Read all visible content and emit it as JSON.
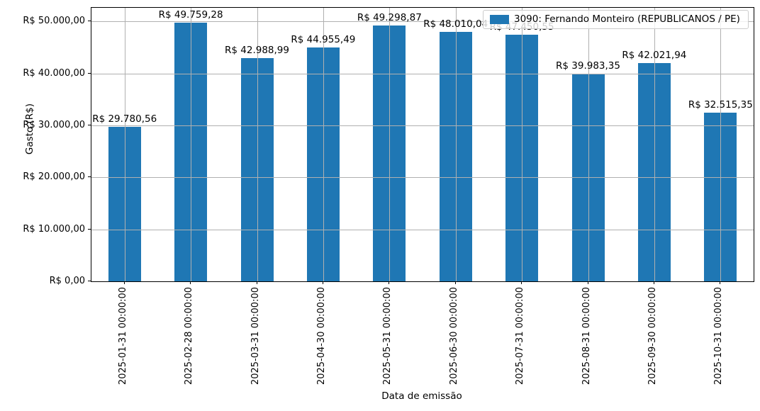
{
  "chart_data": {
    "type": "bar",
    "title": "",
    "xlabel": "Data de emissão",
    "ylabel": "Gasto (R$)",
    "categories": [
      "2025-01-31 00:00:00",
      "2025-02-28 00:00:00",
      "2025-03-31 00:00:00",
      "2025-04-30 00:00:00",
      "2025-05-31 00:00:00",
      "2025-06-30 00:00:00",
      "2025-07-31 00:00:00",
      "2025-08-31 00:00:00",
      "2025-09-30 00:00:00",
      "2025-10-31 00:00:00"
    ],
    "values": [
      29780.56,
      49759.28,
      42988.99,
      44955.49,
      49298.87,
      48010.04,
      47450.55,
      39983.35,
      42021.94,
      32515.35
    ],
    "bar_labels": [
      "R$ 29.780,56",
      "R$ 49.759,28",
      "R$ 42.988,99",
      "R$ 44.955,49",
      "R$ 49.298,87",
      "R$ 48.010,04",
      "R$ 47.450,55",
      "R$ 39.983,35",
      "R$ 42.021,94",
      "R$ 32.515,35"
    ],
    "series": [
      {
        "name": "3090: Fernando Monteiro (REPUBLICANOS / PE)"
      }
    ],
    "legend": {
      "label": "3090: Fernando Monteiro (REPUBLICANOS / PE)",
      "position": "upper right"
    },
    "yticks": [
      {
        "value": 0,
        "label": "R$ 0,00"
      },
      {
        "value": 10000,
        "label": "R$ 10.000,00"
      },
      {
        "value": 20000,
        "label": "R$ 20.000,00"
      },
      {
        "value": 30000,
        "label": "R$ 30.000,00"
      },
      {
        "value": 40000,
        "label": "R$ 40.000,00"
      },
      {
        "value": 50000,
        "label": "R$ 50.000,00"
      }
    ],
    "ylim": [
      0,
      52650
    ],
    "grid": true,
    "colors": {
      "bar": "#1f77b4",
      "grid": "#b0b0b0",
      "spine": "#000000",
      "legend_border": "#cccccc"
    }
  }
}
